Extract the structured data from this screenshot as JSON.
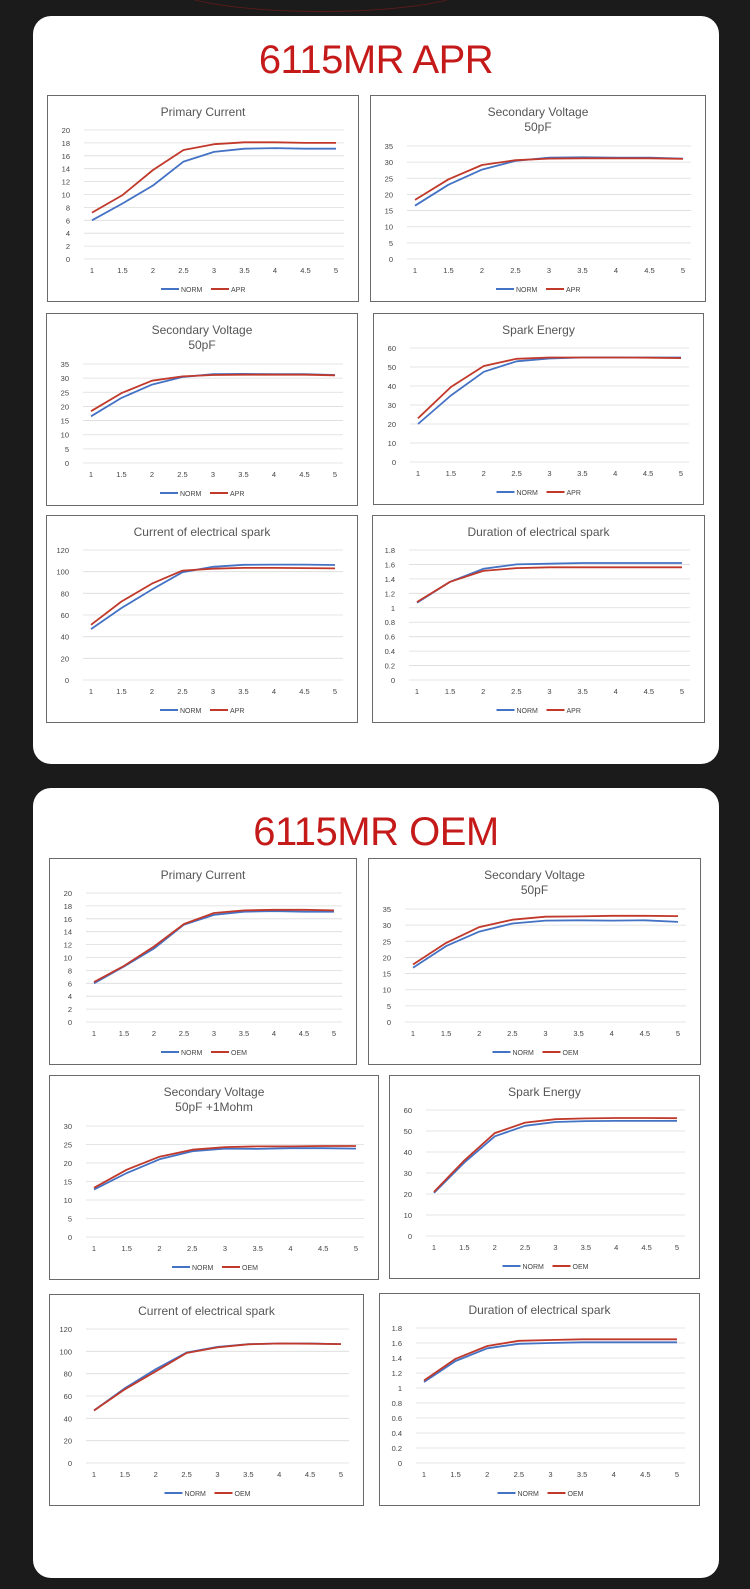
{
  "colors": {
    "norm": "#4472c4",
    "other": "#c0392b",
    "accent_title": "#c41a1a"
  },
  "x_ticks": [
    "1",
    "1.5",
    "2",
    "2.5",
    "3",
    "3.5",
    "4",
    "4.5",
    "5"
  ],
  "sections": [
    {
      "title": "6115MR APR"
    },
    {
      "title": "6115MR OEM"
    }
  ],
  "chart_data": [
    {
      "type": "line",
      "title": "Primary Current",
      "subtitle": "",
      "x": [
        1,
        1.5,
        2,
        2.5,
        3,
        3.5,
        4,
        4.5,
        5
      ],
      "ylim": [
        0,
        20
      ],
      "yticks": [
        0,
        2,
        4,
        6,
        8,
        10,
        12,
        14,
        16,
        18,
        20
      ],
      "series": [
        {
          "name": "NORM",
          "values": [
            6,
            8.6,
            11.4,
            15.1,
            16.6,
            17.1,
            17.2,
            17.1,
            17.1
          ]
        },
        {
          "name": "APR",
          "values": [
            7.2,
            9.9,
            13.8,
            16.9,
            17.8,
            18.1,
            18.1,
            18.0,
            18.0
          ]
        }
      ]
    },
    {
      "type": "line",
      "title": "Secondary Voltage",
      "subtitle": "50pF",
      "x": [
        1,
        1.5,
        2,
        2.5,
        3,
        3.5,
        4,
        4.5,
        5
      ],
      "ylim": [
        0,
        35
      ],
      "yticks": [
        0,
        5,
        10,
        15,
        20,
        25,
        30,
        35
      ],
      "series": [
        {
          "name": "NORM",
          "values": [
            16.5,
            23,
            27.7,
            30.4,
            31.4,
            31.5,
            31.4,
            31.4,
            31.1
          ]
        },
        {
          "name": "APR",
          "values": [
            18.3,
            24.7,
            29.1,
            30.6,
            31.1,
            31.2,
            31.2,
            31.2,
            31.0
          ]
        }
      ]
    },
    {
      "type": "line",
      "title": "Secondary Voltage",
      "subtitle": "50pF",
      "x": [
        1,
        1.5,
        2,
        2.5,
        3,
        3.5,
        4,
        4.5,
        5
      ],
      "ylim": [
        0,
        35
      ],
      "yticks": [
        0,
        5,
        10,
        15,
        20,
        25,
        30,
        35
      ],
      "series": [
        {
          "name": "NORM",
          "values": [
            16.5,
            23,
            27.7,
            30.4,
            31.4,
            31.5,
            31.4,
            31.4,
            31.1
          ]
        },
        {
          "name": "APR",
          "values": [
            18.3,
            24.7,
            29.1,
            30.6,
            31.1,
            31.2,
            31.2,
            31.2,
            31.0
          ]
        }
      ]
    },
    {
      "type": "line",
      "title": "Spark Energy",
      "subtitle": "",
      "x": [
        1,
        1.5,
        2,
        2.5,
        3,
        3.5,
        4,
        4.5,
        5
      ],
      "ylim": [
        0,
        60
      ],
      "yticks": [
        0,
        10,
        20,
        30,
        40,
        50,
        60
      ],
      "series": [
        {
          "name": "NORM",
          "values": [
            20,
            35,
            47.5,
            53,
            54.5,
            55,
            55,
            55,
            55
          ]
        },
        {
          "name": "APR",
          "values": [
            23,
            39.5,
            50.5,
            54.3,
            55,
            55,
            55,
            54.9,
            54.7
          ]
        }
      ]
    },
    {
      "type": "line",
      "title": "Current of electrical spark",
      "subtitle": "",
      "x": [
        1,
        1.5,
        2,
        2.5,
        3,
        3.5,
        4,
        4.5,
        5
      ],
      "ylim": [
        0,
        120
      ],
      "yticks": [
        0,
        20,
        40,
        60,
        80,
        100,
        120
      ],
      "series": [
        {
          "name": "NORM",
          "values": [
            47,
            66.5,
            83.5,
            99.5,
            104.5,
            106.3,
            106.5,
            106.5,
            106.2
          ]
        },
        {
          "name": "APR",
          "values": [
            51,
            72.5,
            89,
            101,
            102.7,
            103.5,
            103.5,
            103.3,
            103
          ]
        }
      ]
    },
    {
      "type": "line",
      "title": "Duration of electrical spark",
      "subtitle": "",
      "x": [
        1,
        1.5,
        2,
        2.5,
        3,
        3.5,
        4,
        4.5,
        5
      ],
      "ylim": [
        0,
        1.8
      ],
      "yticks": [
        0,
        0.2,
        0.4,
        0.6,
        0.8,
        1,
        1.2,
        1.4,
        1.6,
        1.8
      ],
      "series": [
        {
          "name": "NORM",
          "values": [
            1.07,
            1.36,
            1.54,
            1.6,
            1.61,
            1.62,
            1.62,
            1.62,
            1.62
          ]
        },
        {
          "name": "APR",
          "values": [
            1.08,
            1.36,
            1.51,
            1.55,
            1.56,
            1.56,
            1.56,
            1.56,
            1.56
          ]
        }
      ]
    },
    {
      "type": "line",
      "title": "Primary Current",
      "subtitle": "",
      "x": [
        1,
        1.5,
        2,
        2.5,
        3,
        3.5,
        4,
        4.5,
        5
      ],
      "ylim": [
        0,
        20
      ],
      "yticks": [
        0,
        2,
        4,
        6,
        8,
        10,
        12,
        14,
        16,
        18,
        20
      ],
      "series": [
        {
          "name": "NORM",
          "values": [
            6,
            8.6,
            11.4,
            15.1,
            16.6,
            17.1,
            17.2,
            17.1,
            17.1
          ]
        },
        {
          "name": "OEM",
          "values": [
            6.2,
            8.7,
            11.7,
            15.2,
            16.9,
            17.3,
            17.4,
            17.4,
            17.3
          ]
        }
      ]
    },
    {
      "type": "line",
      "title": "Secondary Voltage",
      "subtitle": "50pF",
      "x": [
        1,
        1.5,
        2,
        2.5,
        3,
        3.5,
        4,
        4.5,
        5
      ],
      "ylim": [
        0,
        35
      ],
      "yticks": [
        0,
        5,
        10,
        15,
        20,
        25,
        30,
        35
      ],
      "series": [
        {
          "name": "NORM",
          "values": [
            16.8,
            23.5,
            28,
            30.5,
            31.4,
            31.5,
            31.4,
            31.5,
            31.0
          ]
        },
        {
          "name": "OEM",
          "values": [
            17.8,
            24.5,
            29.4,
            31.7,
            32.6,
            32.7,
            32.9,
            32.9,
            32.8
          ]
        }
      ]
    },
    {
      "type": "line",
      "title": "Secondary Voltage",
      "subtitle": "50pF +1Mohm",
      "x": [
        1,
        1.5,
        2,
        2.5,
        3,
        3.5,
        4,
        4.5,
        5
      ],
      "ylim": [
        0,
        30
      ],
      "yticks": [
        0,
        5,
        10,
        15,
        20,
        25,
        30
      ],
      "series": [
        {
          "name": "NORM",
          "values": [
            12.8,
            17.3,
            21,
            23.2,
            23.9,
            23.8,
            24,
            24,
            23.9
          ]
        },
        {
          "name": "OEM",
          "values": [
            13.3,
            18.2,
            21.7,
            23.6,
            24.3,
            24.5,
            24.5,
            24.6,
            24.6
          ]
        }
      ]
    },
    {
      "type": "line",
      "title": "Spark Energy",
      "subtitle": "",
      "x": [
        1,
        1.5,
        2,
        2.5,
        3,
        3.5,
        4,
        4.5,
        5
      ],
      "ylim": [
        0,
        60
      ],
      "yticks": [
        0,
        10,
        20,
        30,
        40,
        50,
        60
      ],
      "series": [
        {
          "name": "NORM",
          "values": [
            20.5,
            35,
            47.5,
            52.5,
            54.3,
            54.7,
            54.8,
            54.8,
            54.8
          ]
        },
        {
          "name": "OEM",
          "values": [
            21,
            36,
            49,
            54,
            55.6,
            56,
            56.2,
            56.2,
            56.1
          ]
        }
      ]
    },
    {
      "type": "line",
      "title": "Current of electrical spark",
      "subtitle": "",
      "x": [
        1,
        1.5,
        2,
        2.5,
        3,
        3.5,
        4,
        4.5,
        5
      ],
      "ylim": [
        0,
        120
      ],
      "yticks": [
        0,
        20,
        40,
        60,
        80,
        100,
        120
      ],
      "series": [
        {
          "name": "NORM",
          "values": [
            47,
            67,
            84,
            99,
            104,
            106.5,
            107,
            107,
            106.5
          ]
        },
        {
          "name": "OEM",
          "values": [
            47,
            66,
            82,
            98.5,
            103.5,
            106.3,
            107,
            106.8,
            106.5
          ]
        }
      ]
    },
    {
      "type": "line",
      "title": "Duration of electrical spark",
      "subtitle": "",
      "x": [
        1,
        1.5,
        2,
        2.5,
        3,
        3.5,
        4,
        4.5,
        5
      ],
      "ylim": [
        0,
        1.8
      ],
      "yticks": [
        0,
        0.2,
        0.4,
        0.6,
        0.8,
        1,
        1.2,
        1.4,
        1.6,
        1.8
      ],
      "series": [
        {
          "name": "NORM",
          "values": [
            1.08,
            1.36,
            1.53,
            1.59,
            1.6,
            1.61,
            1.61,
            1.61,
            1.61
          ]
        },
        {
          "name": "OEM",
          "values": [
            1.1,
            1.39,
            1.56,
            1.63,
            1.64,
            1.65,
            1.65,
            1.65,
            1.65
          ]
        }
      ]
    }
  ]
}
